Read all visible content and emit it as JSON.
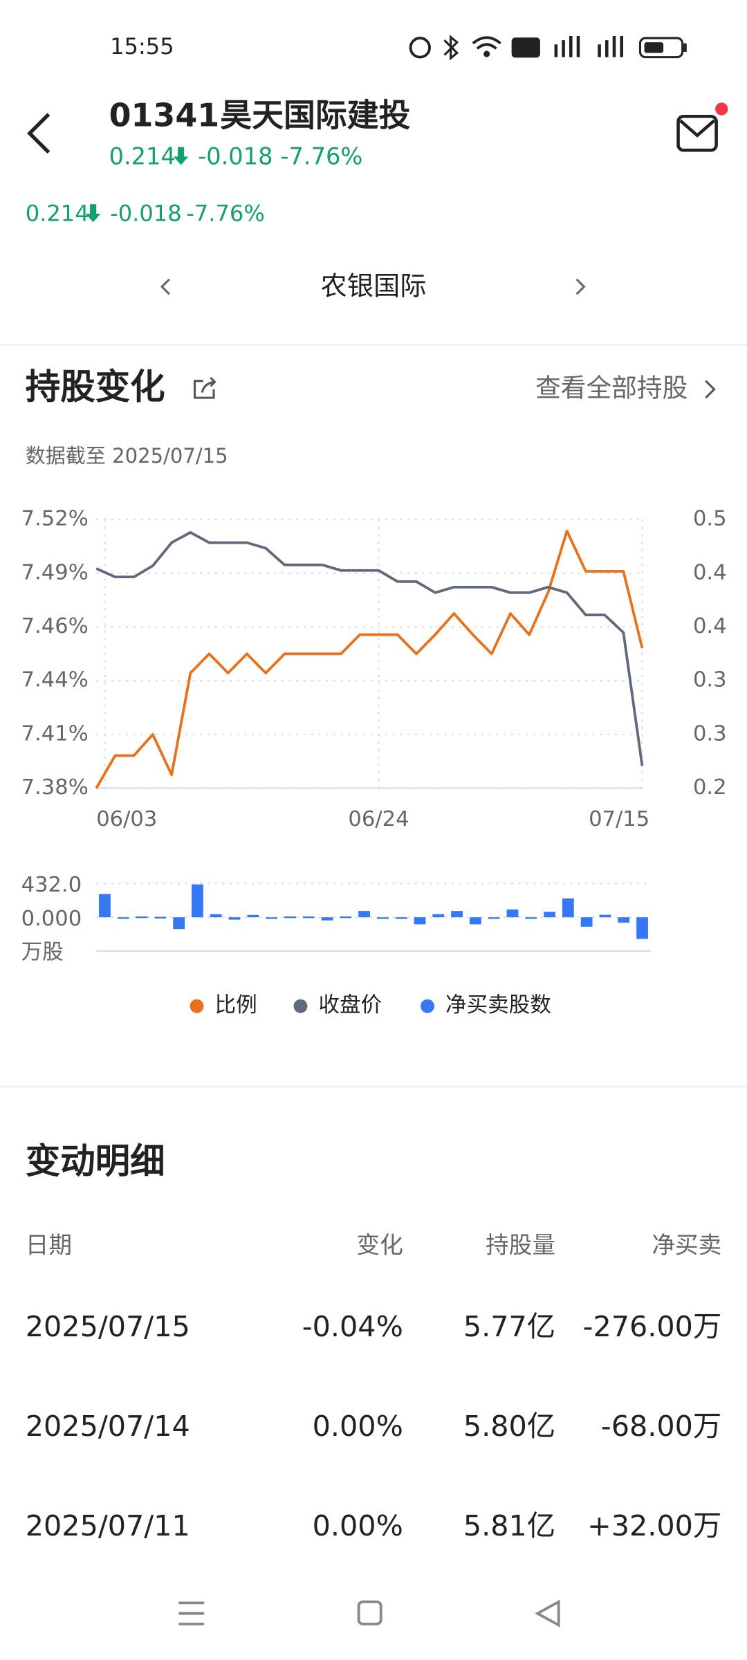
{
  "status_bar": {
    "time": "15:55"
  },
  "header": {
    "code": "01341",
    "name": "昊天国际建投",
    "price": "0.214",
    "change": "-0.018",
    "pct": "-7.76%"
  },
  "quote": {
    "price": "0.214",
    "change": "-0.018",
    "pct": "-7.76%"
  },
  "broker": {
    "name": "农银国际"
  },
  "section": {
    "title": "持股变化",
    "link": "查看全部持股",
    "date_note": "数据截至 2025/07/15"
  },
  "chart_data": [
    {
      "type": "line",
      "categories": [
        "06/03",
        null,
        null,
        null,
        null,
        null,
        null,
        null,
        null,
        null,
        null,
        null,
        null,
        null,
        null,
        "06/24",
        null,
        null,
        null,
        null,
        null,
        null,
        null,
        null,
        null,
        null,
        null,
        null,
        null,
        "07/15"
      ],
      "series": [
        {
          "name": "比例",
          "color": "#e8711c",
          "values": [
            7.38,
            7.397,
            7.397,
            7.408,
            7.387,
            7.44,
            7.45,
            7.44,
            7.45,
            7.44,
            7.45,
            7.45,
            7.45,
            7.45,
            7.46,
            7.46,
            7.46,
            7.45,
            7.46,
            7.471,
            7.46,
            7.45,
            7.471,
            7.46,
            7.482,
            7.514,
            7.493,
            7.493,
            7.493,
            7.453
          ]
        },
        {
          "name": "收盘价",
          "color": "#5f6b7d",
          "axis": "y2",
          "values": [
            0.445,
            0.436,
            0.436,
            0.448,
            0.473,
            0.484,
            0.473,
            0.473,
            0.473,
            0.467,
            0.449,
            0.449,
            0.449,
            0.443,
            0.443,
            0.443,
            0.431,
            0.431,
            0.419,
            0.425,
            0.425,
            0.425,
            0.419,
            0.419,
            0.425,
            0.419,
            0.395,
            0.395,
            0.376,
            0.232
          ]
        }
      ],
      "ylim": [
        7.38,
        7.52
      ],
      "yticks": [
        {
          "value": 7.38,
          "label": "7.38%"
        },
        {
          "value": 7.408,
          "label": "7.41%"
        },
        {
          "value": 7.436,
          "label": "7.44%"
        },
        {
          "value": 7.464,
          "label": "7.46%"
        },
        {
          "value": 7.492,
          "label": "7.49%"
        },
        {
          "value": 7.52,
          "label": "7.52%"
        }
      ],
      "y2lim": [
        0.208,
        0.498
      ],
      "y2ticks": [
        {
          "value": 0.208,
          "label": "0.2"
        },
        {
          "value": 0.266,
          "label": "0.3"
        },
        {
          "value": 0.324,
          "label": "0.3"
        },
        {
          "value": 0.382,
          "label": "0.4"
        },
        {
          "value": 0.44,
          "label": "0.4"
        },
        {
          "value": 0.498,
          "label": "0.5"
        }
      ],
      "grid": true
    },
    {
      "type": "bar",
      "ylabel": "万股",
      "series": [
        {
          "name": "净买卖股数",
          "color": "#3478f6",
          "values": [
            297,
            0,
            10,
            5,
            -150,
            420,
            40,
            -30,
            30,
            -10,
            10,
            10,
            -40,
            10,
            80,
            0,
            0,
            -90,
            40,
            80,
            -90,
            -15,
            100,
            -20,
            70,
            240,
            -120,
            32,
            -68,
            -276
          ]
        }
      ],
      "ylim": [
        -432,
        432
      ],
      "yticks": [
        {
          "value": 0,
          "label": "0.000"
        },
        {
          "value": 432,
          "label": "432.0"
        }
      ],
      "grid": true
    }
  ],
  "details": {
    "title": "变动明细",
    "columns": [
      "日期",
      "变化",
      "持股量",
      "净买卖"
    ],
    "rows": [
      [
        "2025/07/15",
        "-0.04%",
        "5.77亿",
        "-276.00万"
      ],
      [
        "2025/07/14",
        "0.00%",
        "5.80亿",
        "-68.00万"
      ],
      [
        "2025/07/11",
        "0.00%",
        "5.81亿",
        "+32.00万"
      ]
    ]
  }
}
